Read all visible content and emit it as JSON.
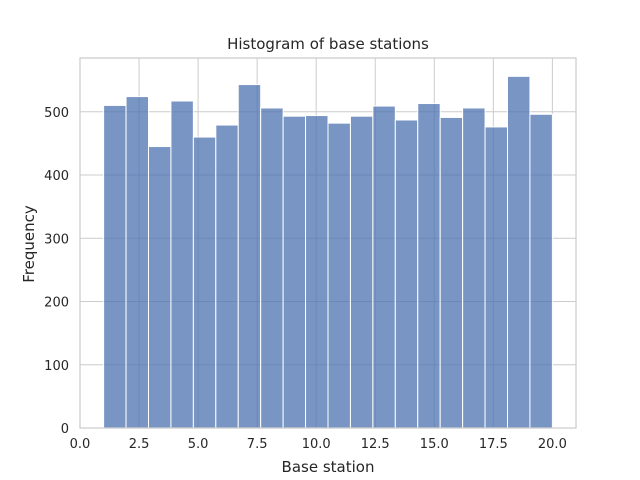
{
  "chart_data": {
    "type": "bar",
    "title": "Histogram of base stations",
    "xlabel": "Base station",
    "ylabel": "Frequency",
    "xlim": [
      0.0,
      21.0
    ],
    "ylim": [
      0,
      585
    ],
    "xticks": [
      0.0,
      2.5,
      5.0,
      7.5,
      10.0,
      12.5,
      15.0,
      17.5,
      20.0
    ],
    "xtick_labels": [
      "0.0",
      "2.5",
      "5.0",
      "7.5",
      "10.0",
      "12.5",
      "15.0",
      "17.5",
      "20.0"
    ],
    "yticks": [
      0,
      100,
      200,
      300,
      400,
      500
    ],
    "ytick_labels": [
      "0",
      "100",
      "200",
      "300",
      "400",
      "500"
    ],
    "grid": true,
    "bar_color": "#4c72b0",
    "bins": [
      {
        "x0": 1.0,
        "x1": 1.95,
        "value": 510
      },
      {
        "x0": 1.95,
        "x1": 2.9,
        "value": 524
      },
      {
        "x0": 2.9,
        "x1": 3.85,
        "value": 445
      },
      {
        "x0": 3.85,
        "x1": 4.8,
        "value": 517
      },
      {
        "x0": 4.8,
        "x1": 5.75,
        "value": 460
      },
      {
        "x0": 5.75,
        "x1": 6.7,
        "value": 479
      },
      {
        "x0": 6.7,
        "x1": 7.65,
        "value": 543
      },
      {
        "x0": 7.65,
        "x1": 8.6,
        "value": 506
      },
      {
        "x0": 8.6,
        "x1": 9.55,
        "value": 493
      },
      {
        "x0": 9.55,
        "x1": 10.5,
        "value": 494
      },
      {
        "x0": 10.5,
        "x1": 11.45,
        "value": 482
      },
      {
        "x0": 11.45,
        "x1": 12.4,
        "value": 493
      },
      {
        "x0": 12.4,
        "x1": 13.35,
        "value": 509
      },
      {
        "x0": 13.35,
        "x1": 14.3,
        "value": 487
      },
      {
        "x0": 14.3,
        "x1": 15.25,
        "value": 513
      },
      {
        "x0": 15.25,
        "x1": 16.2,
        "value": 491
      },
      {
        "x0": 16.2,
        "x1": 17.15,
        "value": 506
      },
      {
        "x0": 17.15,
        "x1": 18.1,
        "value": 476
      },
      {
        "x0": 18.1,
        "x1": 19.05,
        "value": 556
      },
      {
        "x0": 19.05,
        "x1": 20.0,
        "value": 496
      }
    ]
  }
}
